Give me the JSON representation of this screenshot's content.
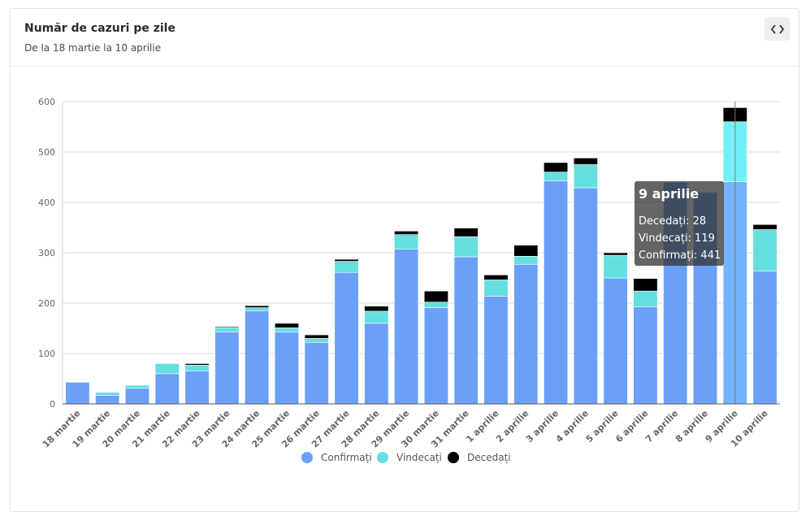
{
  "card": {
    "title": "Număr de cazuri pe zile",
    "subtitle": "De la 18 martie la 10 aprilie",
    "embed_icon": "code-icon"
  },
  "colors": {
    "confirmati": "#6aa0f8",
    "vindecati": "#63dfe0",
    "decedati": "#000000",
    "highlight_confirmati": "#74b4ff",
    "highlight_vindecati": "#75eff3",
    "grid": "#d9d9d9"
  },
  "chart_data": {
    "type": "bar",
    "stacked": true,
    "categories": [
      "18 martie",
      "19 martie",
      "20 martie",
      "21 martie",
      "22 martie",
      "23 martie",
      "24 martie",
      "25 martie",
      "26 martie",
      "27 martie",
      "28 martie",
      "29 martie",
      "30 martie",
      "31 martie",
      "1 aprilie",
      "2 aprilie",
      "3 aprilie",
      "4 aprilie",
      "5 aprilie",
      "6 aprilie",
      "7 aprilie",
      "8 aprilie",
      "9 aprilie",
      "10 aprilie"
    ],
    "series": [
      {
        "name": "Confirmați",
        "values": [
          43,
          17,
          31,
          60,
          65,
          143,
          185,
          143,
          122,
          261,
          160,
          307,
          191,
          292,
          214,
          277,
          443,
          429,
          250,
          193,
          440,
          420,
          441,
          264
        ]
      },
      {
        "name": "Vindecați",
        "values": [
          0,
          6,
          6,
          20,
          12,
          8,
          6,
          8,
          8,
          22,
          24,
          29,
          11,
          40,
          32,
          16,
          17,
          46,
          45,
          31,
          0,
          0,
          119,
          82
        ]
      },
      {
        "name": "Decedați",
        "values": [
          0,
          0,
          0,
          0,
          3,
          2,
          4,
          9,
          7,
          4,
          10,
          7,
          22,
          17,
          10,
          22,
          19,
          13,
          5,
          25,
          0,
          0,
          28,
          10
        ]
      }
    ],
    "ylim": [
      0,
      600
    ],
    "yticks": [
      0,
      100,
      200,
      300,
      400,
      500,
      600
    ],
    "grid": true,
    "legend_position": "bottom",
    "tooltip": {
      "title": "9 aprilie",
      "lines": [
        "Decedați: 28",
        "Vindecați: 119",
        "Confirmați: 441"
      ],
      "active_index": 22
    }
  }
}
